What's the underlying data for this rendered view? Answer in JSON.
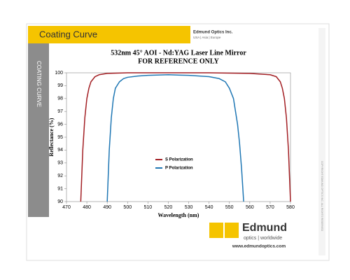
{
  "header": {
    "title": "Coating Curve",
    "company": "Edmund Optics Inc.",
    "regions": "USA | Asia | Europe"
  },
  "sidebar": {
    "label": "COATING CURVE",
    "copyright": "COPYRIGHT EDMUND OPTICS INC. ALL RIGHTS RESERVED"
  },
  "footer": {
    "brand": "Edmund",
    "tagline": "optics | worldwide",
    "url": "www.edmundoptics.com"
  },
  "chart_data": {
    "type": "line",
    "title": "532nm 45° AOI - Nd:YAG Laser Line Mirror",
    "subtitle": "FOR REFERENCE ONLY",
    "x_label": "Wavelength (nm)",
    "y_label": "Reflectance (%)",
    "xlim": [
      470,
      580
    ],
    "xticks": [
      470,
      480,
      490,
      500,
      510,
      520,
      530,
      540,
      550,
      560,
      570,
      580
    ],
    "ylim": [
      90,
      100
    ],
    "yticks": [
      90,
      91,
      92,
      93,
      94,
      95,
      96,
      97,
      98,
      99,
      100
    ],
    "grid": false,
    "legend": "center",
    "series": [
      {
        "name": "S Polarization",
        "color": "#a31f24",
        "x": [
          477,
          478,
          479,
          480,
          481,
          482,
          484,
          486,
          490,
          500,
          520,
          540,
          560,
          570,
          573,
          575,
          576,
          577,
          578,
          579,
          580
        ],
        "values": [
          90,
          94,
          96.5,
          98,
          98.8,
          99.3,
          99.7,
          99.85,
          99.95,
          100,
          100,
          100,
          99.95,
          99.85,
          99.7,
          99.3,
          98.8,
          98,
          96.5,
          94,
          90
        ]
      },
      {
        "name": "P Polarization",
        "color": "#1f77b4",
        "x": [
          490,
          491,
          492,
          493,
          494,
          496,
          498,
          500,
          505,
          510,
          520,
          530,
          540,
          545,
          548,
          550,
          552,
          553,
          554,
          555,
          556,
          557
        ],
        "values": [
          90,
          94,
          96.5,
          98,
          98.8,
          99.3,
          99.55,
          99.65,
          99.75,
          99.8,
          99.85,
          99.8,
          99.7,
          99.55,
          99.3,
          98.8,
          98,
          97,
          96,
          94.5,
          92.5,
          90
        ]
      }
    ]
  }
}
